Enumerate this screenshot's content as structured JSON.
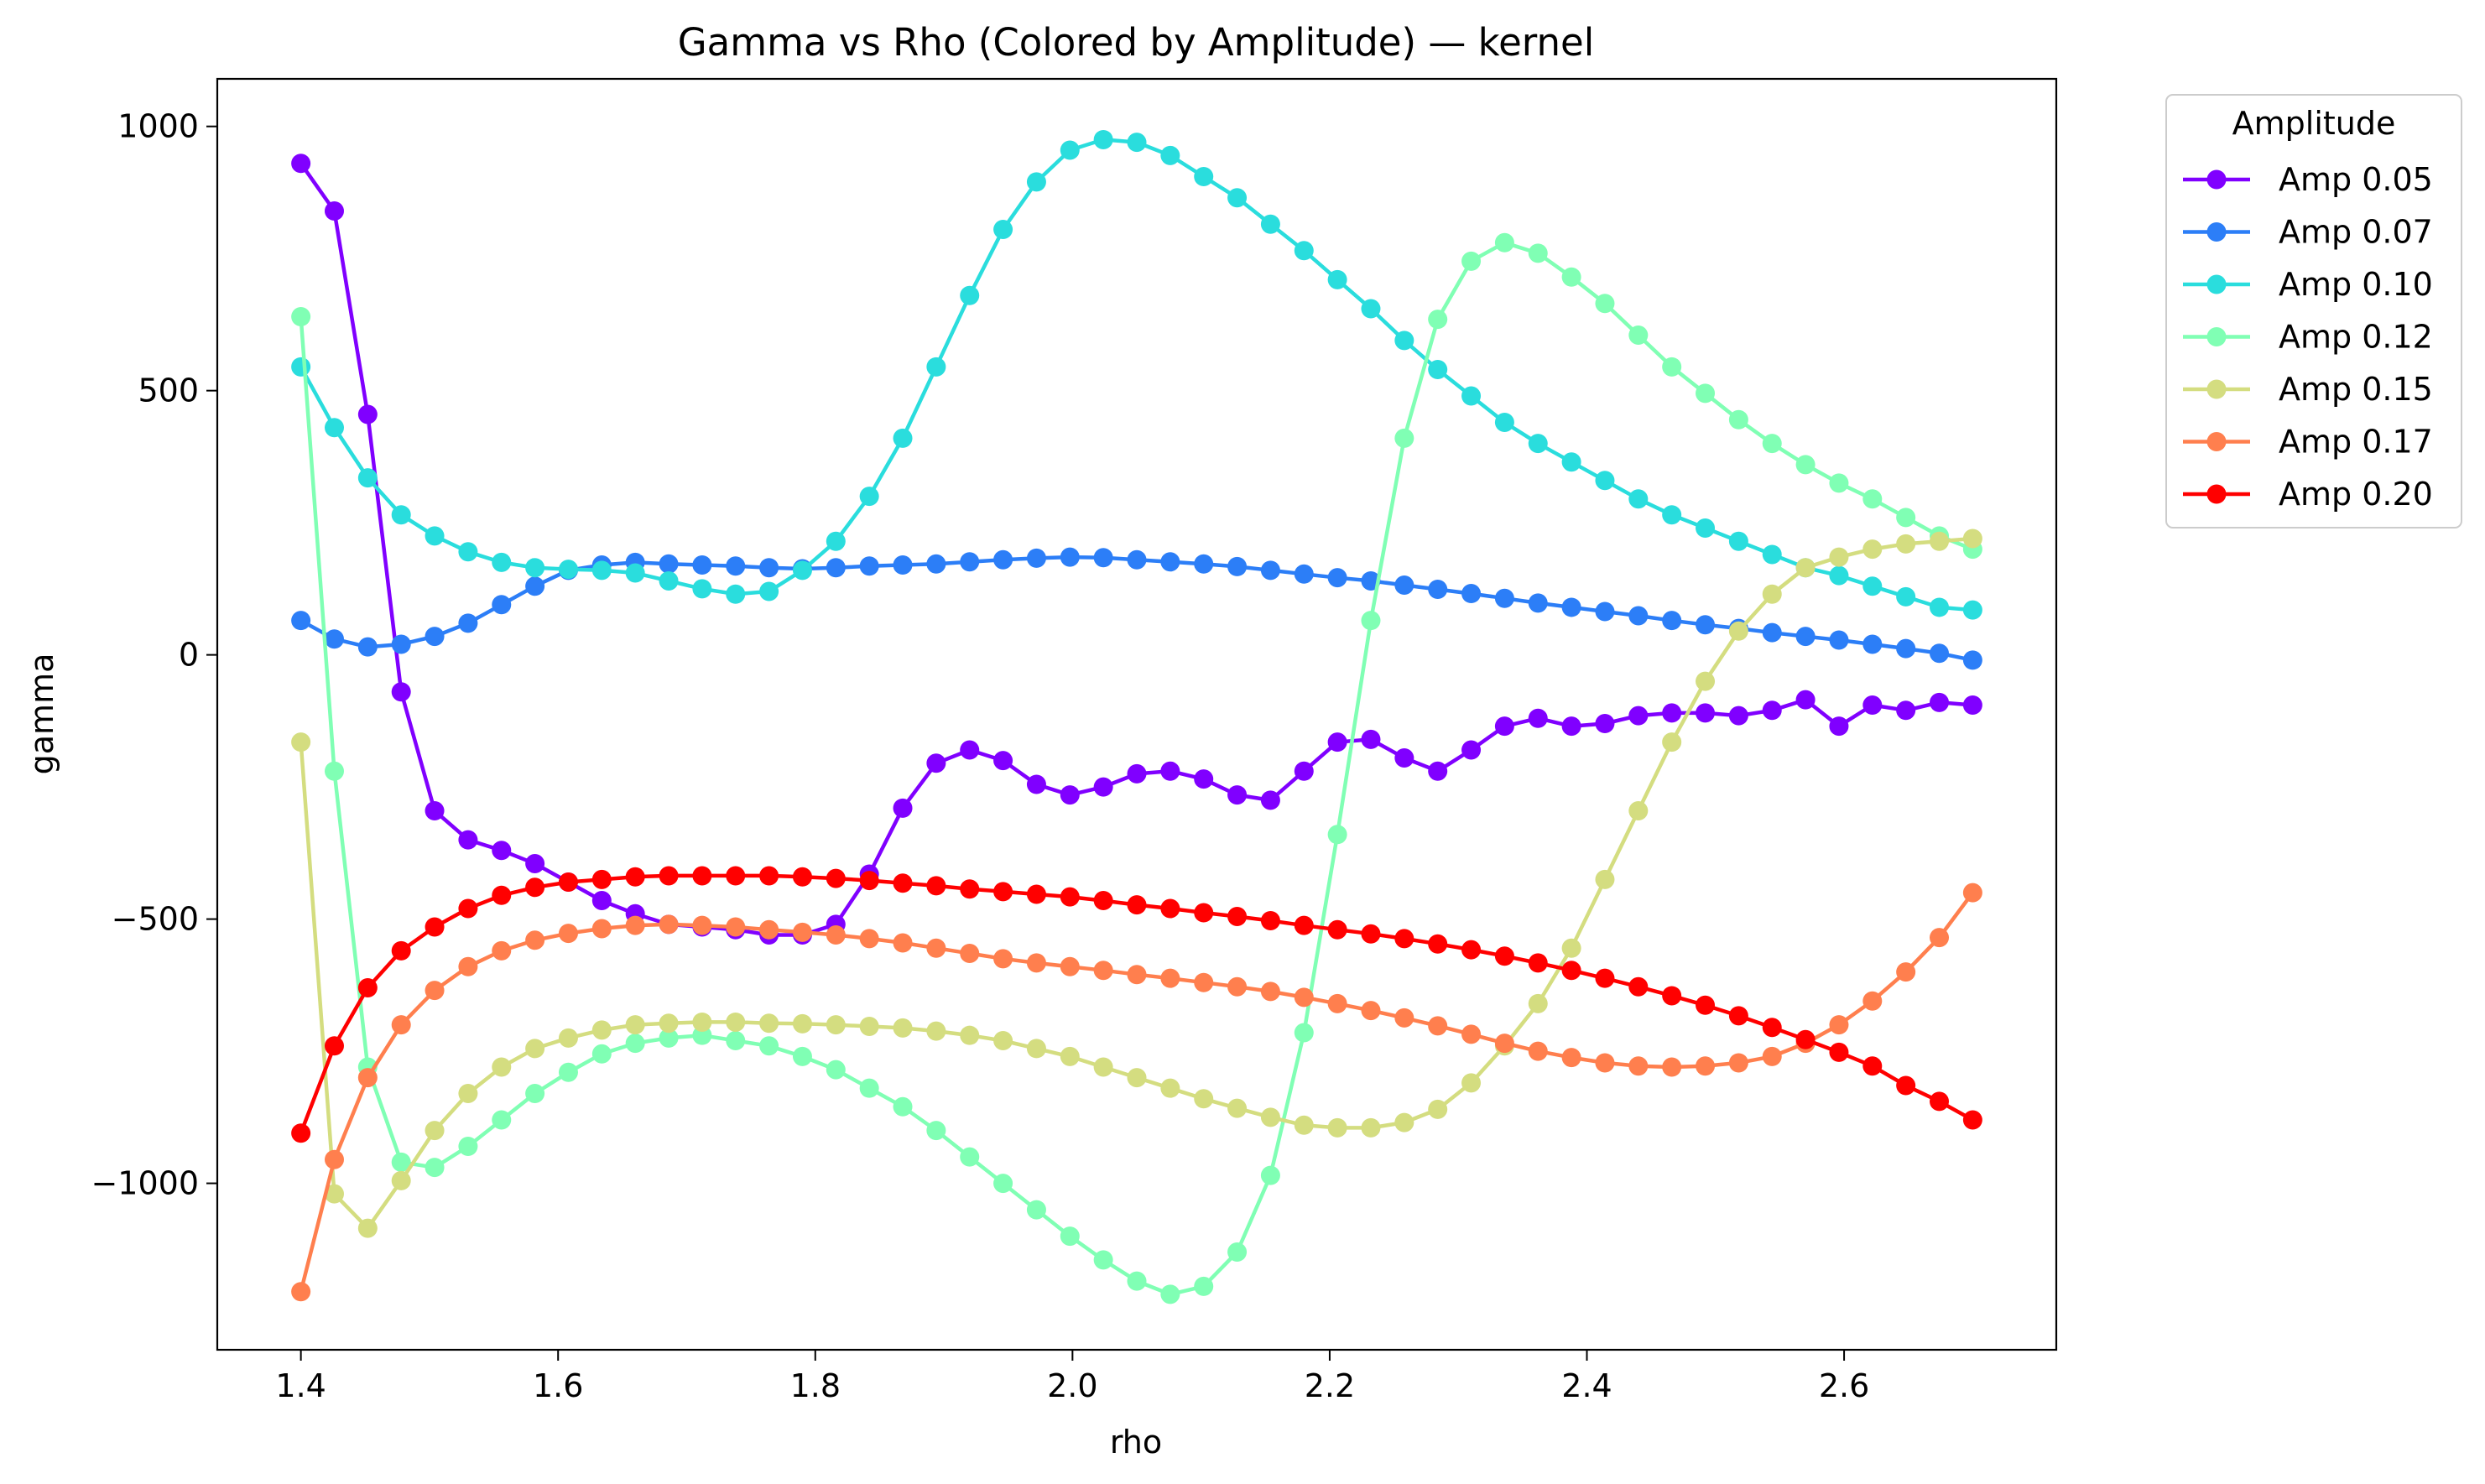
{
  "chart_data": {
    "type": "line",
    "title": "Gamma vs Rho (Colored by Amplitude) — kernel",
    "xlabel": "rho",
    "ylabel": "gamma",
    "xlim": [
      1.335,
      2.765
    ],
    "ylim": [
      -1315,
      1090
    ],
    "xticks": [
      1.4,
      1.6,
      1.8,
      2.0,
      2.2,
      2.4,
      2.6
    ],
    "xtick_labels": [
      "1.4",
      "1.6",
      "1.8",
      "2.0",
      "2.2",
      "2.4",
      "2.6"
    ],
    "yticks": [
      1000,
      500,
      0,
      -500,
      -1000
    ],
    "ytick_labels": [
      "1000",
      "500",
      "0",
      "−500",
      "−1000"
    ],
    "grid": false,
    "legend_title": "Amplitude",
    "legend_position": "outside-top-right",
    "x": [
      1.4,
      1.426,
      1.452,
      1.478,
      1.504,
      1.53,
      1.556,
      1.582,
      1.608,
      1.634,
      1.66,
      1.686,
      1.712,
      1.738,
      1.764,
      1.79,
      1.816,
      1.842,
      1.868,
      1.894,
      1.92,
      1.946,
      1.972,
      1.998,
      2.024,
      2.05,
      2.076,
      2.102,
      2.128,
      2.154,
      2.18,
      2.206,
      2.232,
      2.258,
      2.284,
      2.31,
      2.336,
      2.362,
      2.388,
      2.414,
      2.44,
      2.466,
      2.492,
      2.518,
      2.544,
      2.57,
      2.596,
      2.622,
      2.648,
      2.674,
      2.7
    ],
    "series": [
      {
        "name": "Amp 0.05",
        "color": "#8000ff",
        "values": [
          930,
          840,
          455,
          -70,
          -295,
          -350,
          -370,
          -395,
          -430,
          -465,
          -490,
          -510,
          -515,
          -520,
          -530,
          -530,
          -510,
          -415,
          -290,
          -205,
          -180,
          -200,
          -245,
          -265,
          -250,
          -225,
          -220,
          -235,
          -265,
          -275,
          -220,
          -165,
          -160,
          -195,
          -220,
          -180,
          -135,
          -120,
          -135,
          -130,
          -115,
          -110,
          -110,
          -115,
          -105,
          -85,
          -135,
          -95,
          -105,
          -90,
          -95
        ]
      },
      {
        "name": "Amp 0.07",
        "color": "#2c7ef7",
        "values": [
          65,
          30,
          15,
          20,
          35,
          60,
          95,
          130,
          160,
          170,
          175,
          172,
          170,
          168,
          165,
          163,
          165,
          168,
          170,
          172,
          176,
          180,
          183,
          185,
          184,
          180,
          176,
          172,
          167,
          160,
          153,
          146,
          140,
          132,
          124,
          116,
          107,
          98,
          90,
          82,
          74,
          65,
          57,
          50,
          42,
          35,
          28,
          20,
          12,
          3,
          -10
        ]
      },
      {
        "name": "Amp 0.10",
        "color": "#2adddd",
        "values": [
          545,
          430,
          335,
          265,
          225,
          195,
          175,
          165,
          162,
          160,
          155,
          140,
          125,
          115,
          120,
          160,
          215,
          300,
          410,
          545,
          680,
          805,
          895,
          955,
          975,
          970,
          945,
          905,
          865,
          815,
          765,
          710,
          655,
          595,
          540,
          490,
          440,
          400,
          365,
          330,
          295,
          265,
          240,
          215,
          190,
          165,
          150,
          130,
          110,
          90,
          85
        ]
      },
      {
        "name": "Amp 0.12",
        "color": "#80ffb4",
        "values": [
          640,
          -220,
          -780,
          -960,
          -970,
          -930,
          -880,
          -830,
          -790,
          -755,
          -735,
          -725,
          -720,
          -730,
          -740,
          -760,
          -785,
          -820,
          -855,
          -900,
          -950,
          -1000,
          -1050,
          -1100,
          -1145,
          -1185,
          -1210,
          -1195,
          -1130,
          -985,
          -715,
          -340,
          65,
          410,
          635,
          745,
          780,
          760,
          715,
          665,
          605,
          545,
          495,
          445,
          400,
          360,
          325,
          295,
          260,
          225,
          200
        ]
      },
      {
        "name": "Amp 0.15",
        "color": "#d4dd80",
        "values": [
          -165,
          -1020,
          -1085,
          -995,
          -900,
          -830,
          -780,
          -745,
          -725,
          -710,
          -700,
          -697,
          -695,
          -695,
          -697,
          -698,
          -700,
          -703,
          -706,
          -712,
          -720,
          -730,
          -745,
          -760,
          -780,
          -800,
          -820,
          -840,
          -858,
          -875,
          -890,
          -895,
          -895,
          -885,
          -860,
          -810,
          -740,
          -660,
          -555,
          -425,
          -295,
          -165,
          -50,
          45,
          115,
          165,
          185,
          200,
          210,
          215,
          220
        ]
      },
      {
        "name": "Amp 0.17",
        "color": "#ff7f4e",
        "values": [
          -1205,
          -955,
          -800,
          -700,
          -635,
          -590,
          -560,
          -540,
          -527,
          -518,
          -512,
          -510,
          -512,
          -515,
          -520,
          -525,
          -530,
          -537,
          -545,
          -555,
          -565,
          -575,
          -583,
          -590,
          -597,
          -605,
          -612,
          -620,
          -628,
          -637,
          -648,
          -660,
          -673,
          -687,
          -702,
          -718,
          -735,
          -750,
          -762,
          -772,
          -778,
          -780,
          -778,
          -772,
          -760,
          -735,
          -700,
          -655,
          -600,
          -535,
          -450
        ]
      },
      {
        "name": "Amp 0.20",
        "color": "#ff0000",
        "values": [
          -905,
          -740,
          -630,
          -560,
          -515,
          -480,
          -455,
          -440,
          -430,
          -425,
          -420,
          -418,
          -418,
          -418,
          -418,
          -420,
          -423,
          -427,
          -432,
          -437,
          -443,
          -448,
          -453,
          -458,
          -465,
          -473,
          -480,
          -488,
          -495,
          -503,
          -512,
          -520,
          -528,
          -537,
          -547,
          -558,
          -570,
          -583,
          -597,
          -612,
          -628,
          -645,
          -663,
          -683,
          -705,
          -728,
          -752,
          -778,
          -815,
          -845,
          -880
        ]
      }
    ]
  }
}
